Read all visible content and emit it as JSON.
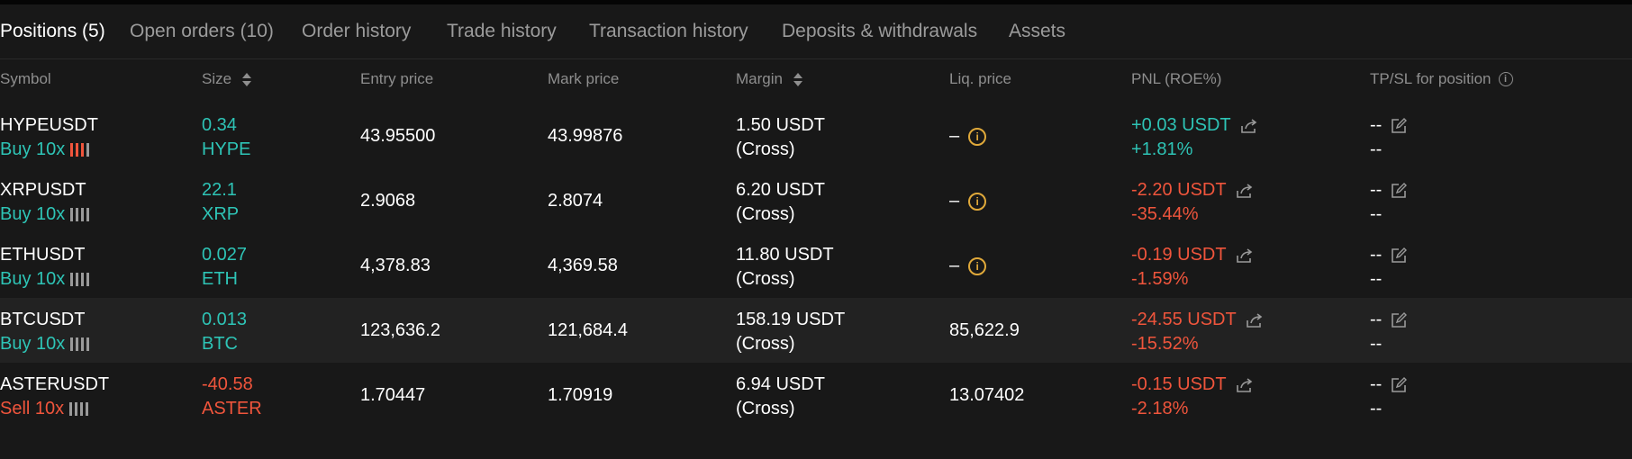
{
  "tabs": [
    {
      "label": "Positions (5)",
      "active": true
    },
    {
      "label": "Open orders (10)"
    },
    {
      "label": "Order history"
    },
    {
      "label": "Trade history"
    },
    {
      "label": "Transaction history"
    },
    {
      "label": "Deposits & withdrawals"
    },
    {
      "label": "Assets"
    }
  ],
  "columns": {
    "symbol": "Symbol",
    "size": "Size",
    "entry": "Entry price",
    "mark": "Mark price",
    "margin": "Margin",
    "liq": "Liq. price",
    "pnl": "PNL (ROE%)",
    "tpsl": "TP/SL for position"
  },
  "positions": [
    {
      "symbol": "HYPEUSDT",
      "side": "Buy 10x",
      "size": "0.34",
      "asset": "HYPE",
      "entry": "43.95500",
      "mark": "43.99876",
      "margin": "1.50 USDT",
      "margin_mode": "(Cross)",
      "liq": "–",
      "pnl": "+0.03 USDT",
      "roe": "+1.81%",
      "tp": "--",
      "sl": "--"
    },
    {
      "symbol": "XRPUSDT",
      "side": "Buy 10x",
      "size": "22.1",
      "asset": "XRP",
      "entry": "2.9068",
      "mark": "2.8074",
      "margin": "6.20 USDT",
      "margin_mode": "(Cross)",
      "liq": "–",
      "pnl": "-2.20 USDT",
      "roe": "-35.44%",
      "tp": "--",
      "sl": "--"
    },
    {
      "symbol": "ETHUSDT",
      "side": "Buy 10x",
      "size": "0.027",
      "asset": "ETH",
      "entry": "4,378.83",
      "mark": "4,369.58",
      "margin": "11.80 USDT",
      "margin_mode": "(Cross)",
      "liq": "–",
      "pnl": "-0.19 USDT",
      "roe": "-1.59%",
      "tp": "--",
      "sl": "--"
    },
    {
      "symbol": "BTCUSDT",
      "side": "Buy 10x",
      "size": "0.013",
      "asset": "BTC",
      "entry": "123,636.2",
      "mark": "121,684.4",
      "margin": "158.19 USDT",
      "margin_mode": "(Cross)",
      "liq": "85,622.9",
      "pnl": "-24.55 USDT",
      "roe": "-15.52%",
      "tp": "--",
      "sl": "--"
    },
    {
      "symbol": "ASTERUSDT",
      "side": "Sell 10x",
      "size": "-40.58",
      "asset": "ASTER",
      "entry": "1.70447",
      "mark": "1.70919",
      "margin": "6.94 USDT",
      "margin_mode": "(Cross)",
      "liq": "13.07402",
      "pnl": "-0.15 USDT",
      "roe": "-2.18%",
      "tp": "--",
      "sl": "--"
    }
  ],
  "colors": {
    "buy": "#2ec4b6",
    "sell": "#f0553c",
    "warning": "#e0a93a",
    "background": "#181818"
  }
}
